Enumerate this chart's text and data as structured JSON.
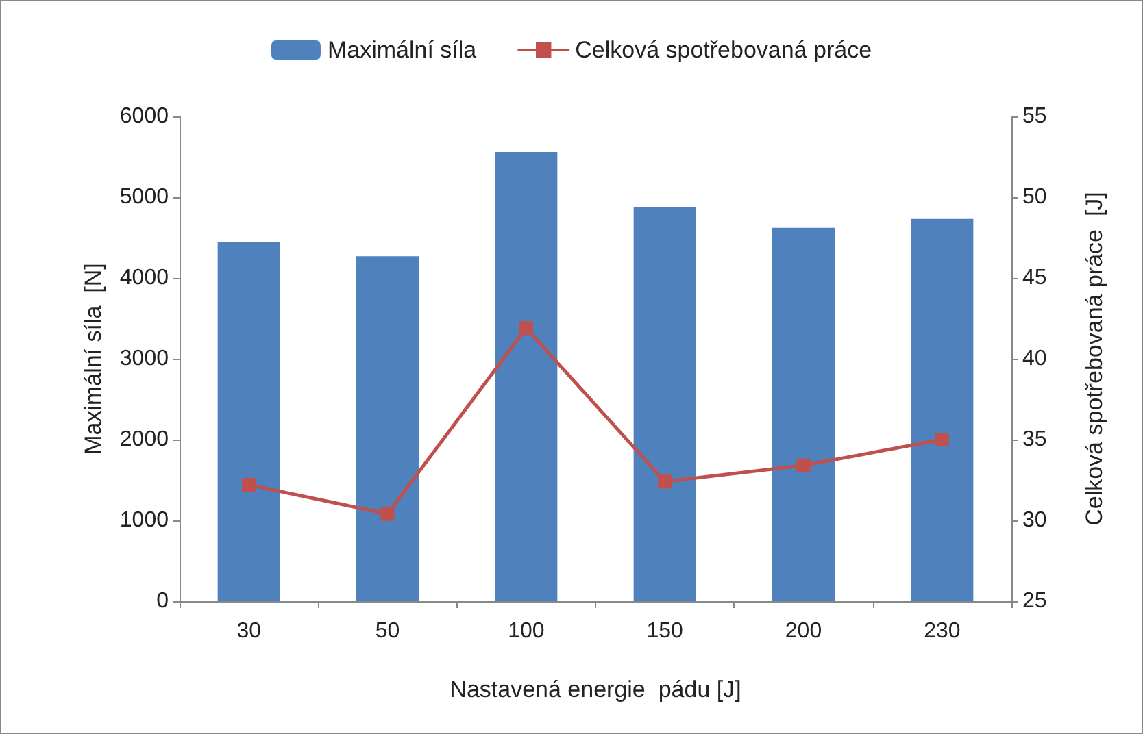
{
  "chart_data": {
    "type": "bar",
    "categories": [
      "30",
      "50",
      "100",
      "150",
      "200",
      "230"
    ],
    "series": [
      {
        "name": "Maximální síla",
        "color": "#4f81bd",
        "values": [
          4450,
          4270,
          5560,
          4880,
          4620,
          4730
        ]
      },
      {
        "name": "Celková spotřebovaná práce",
        "type": "line",
        "axis": "y2",
        "color": "#c0504d",
        "values": [
          32.2,
          30.4,
          41.9,
          32.4,
          33.4,
          35.0
        ]
      }
    ],
    "xlabel": "Nastavená energie  pádu [J]",
    "ylabel": "Maximální síla  [N]",
    "y2label": "Celková spotřebovaná práce  [J]",
    "ylim": [
      0,
      6000
    ],
    "yticks": [
      0,
      1000,
      2000,
      3000,
      4000,
      5000,
      6000
    ],
    "y2lim": [
      25,
      55
    ],
    "y2ticks": [
      25,
      30,
      35,
      40,
      45,
      50,
      55
    ],
    "legend": "top",
    "grid": false,
    "marker": "square",
    "line_style": "solid"
  }
}
